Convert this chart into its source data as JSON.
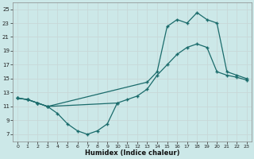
{
  "xlabel": "Humidex (Indice chaleur)",
  "bg_color": "#cce8e8",
  "grid_color": "#aacccc",
  "line_color": "#1a6b6b",
  "xlim": [
    -0.5,
    23.5
  ],
  "ylim": [
    6,
    26
  ],
  "xticks": [
    0,
    1,
    2,
    3,
    4,
    5,
    6,
    7,
    8,
    9,
    10,
    11,
    12,
    13,
    14,
    15,
    16,
    17,
    18,
    19,
    20,
    21,
    22,
    23
  ],
  "yticks": [
    7,
    9,
    11,
    13,
    15,
    17,
    19,
    21,
    23,
    25
  ],
  "line1_x": [
    0,
    1,
    2,
    3,
    4,
    5,
    6,
    7,
    8,
    9,
    10
  ],
  "line1_y": [
    12.2,
    12.0,
    11.5,
    11.0,
    10.0,
    8.5,
    7.5,
    7.0,
    7.5,
    8.5,
    11.5
  ],
  "line2_x": [
    0,
    1,
    2,
    3,
    10,
    11,
    12,
    13,
    14,
    15,
    16,
    17,
    18,
    19,
    20,
    21,
    22,
    23
  ],
  "line2_y": [
    12.2,
    12.0,
    11.5,
    11.0,
    11.5,
    12.0,
    12.5,
    13.5,
    15.5,
    17.0,
    18.5,
    19.5,
    20.0,
    19.5,
    16.0,
    15.5,
    15.2,
    14.8
  ],
  "line3_x": [
    0,
    1,
    2,
    3,
    13,
    14,
    15,
    16,
    17,
    18,
    19,
    20,
    21,
    22,
    23
  ],
  "line3_y": [
    12.2,
    12.0,
    11.5,
    11.0,
    14.5,
    16.0,
    22.5,
    23.5,
    23.0,
    24.5,
    23.5,
    23.0,
    16.0,
    15.5,
    15.0
  ]
}
